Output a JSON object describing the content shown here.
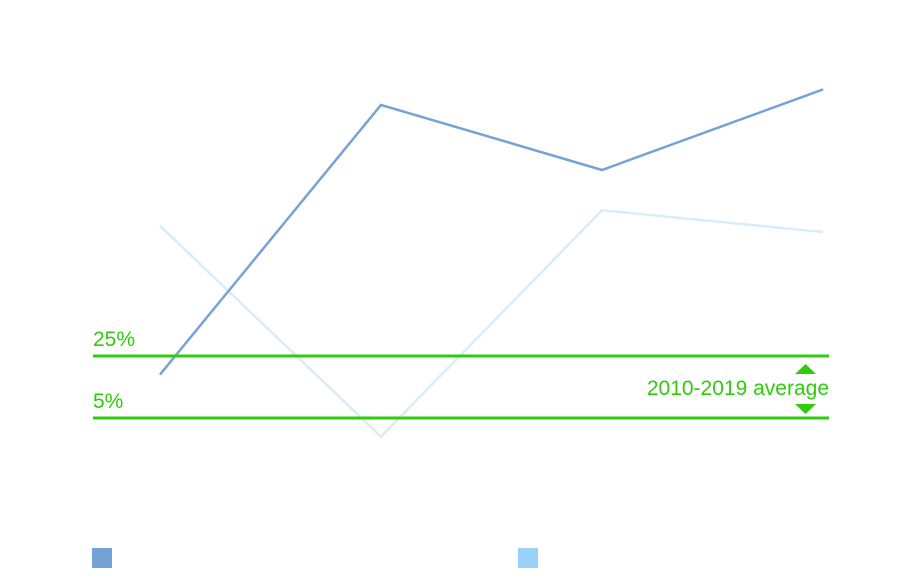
{
  "chart_data": {
    "type": "line",
    "title": "",
    "xlabel": "",
    "ylabel": "",
    "x": [
      0,
      1,
      2,
      3
    ],
    "ylim": [
      -10,
      115
    ],
    "grid": false,
    "legend": "bottom",
    "series": [
      {
        "values": [
          19,
          106,
          85,
          111
        ],
        "color": "#75a3d6",
        "legend_color": "#75a3d6"
      },
      {
        "values": [
          67,
          -1,
          72,
          65
        ],
        "color": "#d8edf8",
        "legend_color": "#99d1f8"
      }
    ],
    "reference_lines": [
      {
        "value": 25,
        "label": "25%"
      },
      {
        "value": 5,
        "label": "5%"
      }
    ],
    "reference_band_label": "2010-2019 average",
    "reference_color": "#2fcc0e"
  }
}
